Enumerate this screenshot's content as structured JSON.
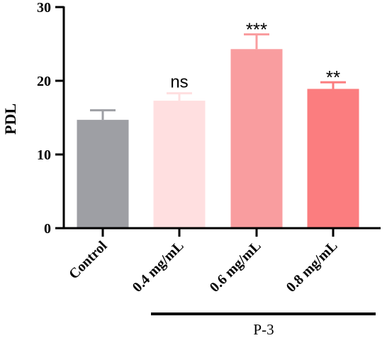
{
  "chart_data": {
    "type": "bar",
    "ylabel": "PDL",
    "ylim": [
      0,
      30
    ],
    "yticks": [
      "0",
      "10",
      "20",
      "30"
    ],
    "categories": [
      "Control",
      "0.4 mg/mL",
      "0.6 mg/mL",
      "0.8 mg/mL"
    ],
    "values": [
      14.7,
      17.3,
      24.3,
      18.9
    ],
    "errors": [
      1.3,
      1.0,
      2.0,
      0.9
    ],
    "significance": [
      "",
      "ns",
      "***",
      "**"
    ],
    "colors": [
      "#9e9fa4",
      "#ffdfe0",
      "#f99d9f",
      "#fb7d7f"
    ],
    "group_label": "P-3",
    "grid": false
  }
}
